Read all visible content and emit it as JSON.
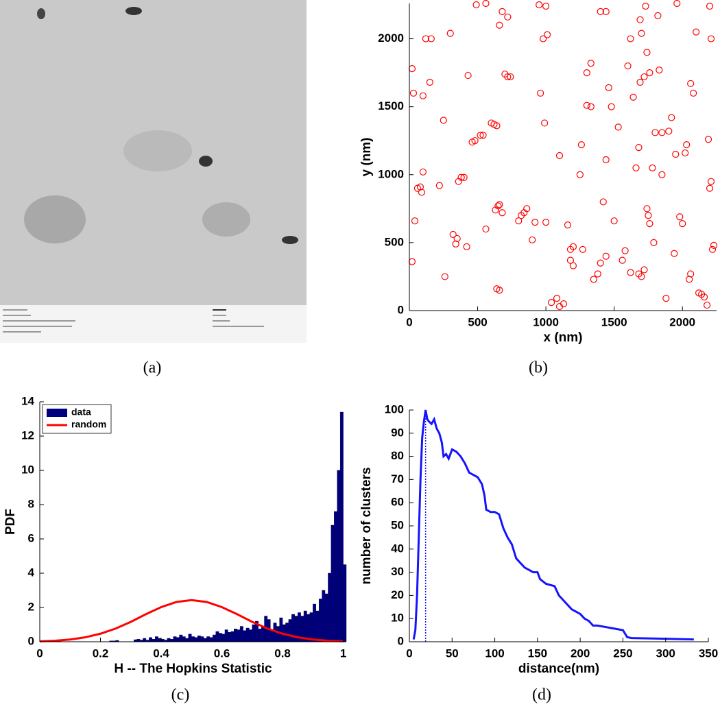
{
  "chart_data": [
    {
      "type": "image",
      "caption": "(a)"
    },
    {
      "type": "scatter",
      "caption": "(b)",
      "xlabel": "x (nm)",
      "ylabel": "y (nm)",
      "xlim": [
        0,
        2250
      ],
      "ylim": [
        0,
        2260
      ],
      "xticks": [
        0,
        500,
        1000,
        1500,
        2000
      ],
      "yticks": [
        0,
        500,
        1000,
        1500,
        2000
      ],
      "series": [
        {
          "color": "#ff0000",
          "x": [
            20,
            30,
            100,
            40,
            20,
            60,
            80,
            90,
            100,
            120,
            160,
            250,
            300,
            320,
            340,
            360,
            380,
            400,
            350,
            420,
            460,
            480,
            520,
            540,
            560,
            600,
            620,
            640,
            630,
            650,
            660,
            680,
            700,
            720,
            740,
            660,
            680,
            720,
            640,
            660,
            840,
            860,
            820,
            800,
            900,
            920,
            960,
            980,
            1000,
            950,
            1010,
            1040,
            1080,
            1100,
            1130,
            1100,
            1180,
            1200,
            1180,
            1200,
            1160,
            1250,
            1260,
            1270,
            1300,
            1330,
            1330,
            1350,
            1380,
            1400,
            1420,
            1400,
            1440,
            1460,
            1440,
            1500,
            1480,
            1530,
            1560,
            1600,
            1620,
            1620,
            1640,
            1660,
            1680,
            1680,
            1700,
            1720,
            1690,
            1700,
            1740,
            1750,
            1760,
            1720,
            1740,
            1760,
            1780,
            1790,
            1800,
            1820,
            1830,
            1850,
            1880,
            1900,
            1920,
            1940,
            1950,
            1980,
            2000,
            2020,
            2030,
            2050,
            2060,
            2080,
            2100,
            2120,
            2140,
            2160,
            2180,
            2200,
            2210,
            2190,
            2210,
            2220,
            2230,
            2200,
            2060,
            1850,
            1960,
            1690,
            1730,
            1580,
            1440,
            1000,
            560,
            490,
            430,
            220,
            150,
            260,
            1300,
            990
          ],
          "values": [
            1780,
            1600,
            1580,
            660,
            360,
            900,
            910,
            870,
            1020,
            2000,
            2000,
            1400,
            2040,
            560,
            490,
            950,
            980,
            980,
            530,
            470,
            1240,
            1250,
            1290,
            1290,
            600,
            1380,
            1370,
            1360,
            740,
            770,
            780,
            720,
            1740,
            1720,
            1720,
            2100,
            2200,
            2160,
            160,
            150,
            720,
            750,
            700,
            660,
            520,
            650,
            1600,
            2000,
            2240,
            2250,
            2030,
            60,
            90,
            30,
            50,
            1140,
            450,
            470,
            370,
            330,
            630,
            1000,
            1220,
            450,
            1510,
            1500,
            1820,
            230,
            270,
            350,
            800,
            2200,
            2200,
            1640,
            1110,
            660,
            1500,
            1350,
            370,
            1800,
            2000,
            280,
            1570,
            1050,
            1200,
            270,
            250,
            300,
            2140,
            2040,
            750,
            700,
            640,
            1720,
            1900,
            1750,
            1050,
            500,
            1310,
            2170,
            1770,
            1000,
            90,
            1320,
            1420,
            420,
            1150,
            690,
            640,
            1160,
            1220,
            230,
            1670,
            1600,
            2050,
            130,
            120,
            100,
            40,
            900,
            950,
            1260,
            2000,
            450,
            480,
            2240,
            270,
            1310,
            2260,
            1680,
            2240,
            440,
            400,
            650,
            2260,
            2250,
            1730,
            920,
            1680,
            250,
            1750,
            1380
          ]
        }
      ]
    },
    {
      "type": "histogram",
      "caption": "(c)",
      "xlabel": "H -- The Hopkins Statistic",
      "ylabel": "PDF",
      "xlim": [
        0,
        1.01
      ],
      "ylim": [
        0,
        14
      ],
      "xticks": [
        0,
        0.2,
        0.4,
        0.6,
        0.8,
        1
      ],
      "yticks": [
        0,
        2,
        4,
        6,
        8,
        10,
        12,
        14
      ],
      "legend": "upper left",
      "bins": [
        0,
        0.01,
        0.02,
        0.03,
        0.04,
        0.05,
        0.06,
        0.07,
        0.08,
        0.09,
        0.1,
        0.11,
        0.12,
        0.13,
        0.14,
        0.15,
        0.16,
        0.17,
        0.18,
        0.19,
        0.2,
        0.21,
        0.22,
        0.23,
        0.24,
        0.25,
        0.26,
        0.27,
        0.28,
        0.29,
        0.3,
        0.31,
        0.32,
        0.33,
        0.34,
        0.35,
        0.36,
        0.37,
        0.38,
        0.39,
        0.4,
        0.41,
        0.42,
        0.43,
        0.44,
        0.45,
        0.46,
        0.47,
        0.48,
        0.49,
        0.5,
        0.51,
        0.52,
        0.53,
        0.54,
        0.55,
        0.56,
        0.57,
        0.58,
        0.59,
        0.6,
        0.61,
        0.62,
        0.63,
        0.64,
        0.65,
        0.66,
        0.67,
        0.68,
        0.69,
        0.7,
        0.71,
        0.72,
        0.73,
        0.74,
        0.75,
        0.76,
        0.77,
        0.78,
        0.79,
        0.8,
        0.81,
        0.82,
        0.83,
        0.84,
        0.85,
        0.86,
        0.87,
        0.88,
        0.89,
        0.9,
        0.91,
        0.92,
        0.93,
        0.94,
        0.95,
        0.96,
        0.97,
        0.98,
        0.99,
        1,
        1.01
      ],
      "series": [
        {
          "name": "data",
          "color": "#00007f",
          "values": [
            0,
            0,
            0,
            0,
            0,
            0,
            0,
            0,
            0,
            0,
            0,
            0,
            0,
            0,
            0,
            0,
            0,
            0,
            0,
            0,
            0,
            0,
            0,
            0.05,
            0.05,
            0.08,
            0,
            0,
            0,
            0,
            0,
            0.12,
            0.15,
            0.1,
            0.2,
            0.1,
            0.25,
            0.15,
            0.3,
            0.2,
            0.15,
            0.1,
            0.2,
            0.15,
            0.3,
            0.25,
            0.4,
            0.3,
            0.2,
            0.45,
            0.3,
            0.25,
            0.35,
            0.3,
            0.2,
            0.3,
            0.25,
            0.4,
            0.6,
            0.5,
            0.45,
            0.7,
            0.55,
            0.6,
            0.75,
            0.7,
            0.9,
            0.65,
            0.8,
            0.7,
            1.0,
            1.2,
            0.75,
            0.85,
            1.5,
            1.3,
            0.7,
            1.1,
            0.9,
            1.4,
            1.0,
            1.1,
            1.3,
            1.6,
            1.5,
            1.7,
            1.5,
            1.8,
            1.6,
            1.7,
            2.2,
            1.8,
            2.5,
            3.0,
            2.8,
            4.0,
            6.8,
            7.6,
            10.0,
            13.4,
            4.5
          ]
        },
        {
          "name": "random",
          "type": "line",
          "color": "#ff0000",
          "x": [
            0,
            0.05,
            0.1,
            0.15,
            0.2,
            0.25,
            0.3,
            0.35,
            0.4,
            0.45,
            0.5,
            0.55,
            0.6,
            0.65,
            0.7,
            0.75,
            0.8,
            0.85,
            0.9,
            0.95,
            1
          ],
          "values": [
            0.025,
            0.059,
            0.13,
            0.26,
            0.47,
            0.77,
            1.16,
            1.61,
            2.02,
            2.32,
            2.43,
            2.32,
            2.02,
            1.61,
            1.16,
            0.77,
            0.47,
            0.26,
            0.13,
            0.059,
            0.025
          ]
        }
      ]
    },
    {
      "type": "line",
      "caption": "(d)",
      "xlabel": "distance(nm)",
      "ylabel": "number of clusters",
      "xlim": [
        0,
        350
      ],
      "ylim": [
        0,
        100
      ],
      "xticks": [
        0,
        50,
        100,
        150,
        200,
        250,
        300,
        350
      ],
      "yticks": [
        0,
        10,
        20,
        30,
        40,
        50,
        60,
        70,
        80,
        90,
        100
      ],
      "vline": 19,
      "series": [
        {
          "color": "#1414ff",
          "x": [
            5,
            7,
            9,
            11,
            13,
            15,
            17,
            19,
            21,
            23,
            26,
            29,
            32,
            35,
            38,
            40,
            43,
            46,
            50,
            55,
            60,
            65,
            70,
            75,
            80,
            85,
            88,
            90,
            95,
            100,
            105,
            110,
            115,
            120,
            125,
            130,
            135,
            140,
            145,
            150,
            153,
            160,
            170,
            175,
            180,
            190,
            200,
            205,
            210,
            215,
            220,
            250,
            255,
            260,
            300,
            333
          ],
          "values": [
            1,
            5,
            20,
            45,
            70,
            88,
            95,
            100,
            96,
            95,
            94,
            96,
            92,
            90,
            86,
            80,
            81,
            79,
            83,
            82,
            80,
            77,
            73,
            72,
            71,
            68,
            63,
            57,
            56,
            56,
            55,
            49,
            45,
            42,
            36,
            34,
            32,
            31,
            30,
            30,
            27,
            25,
            24,
            20,
            18,
            14,
            12,
            10,
            9,
            7,
            7,
            5,
            2,
            1.6,
            1.3,
            1
          ]
        }
      ]
    }
  ]
}
